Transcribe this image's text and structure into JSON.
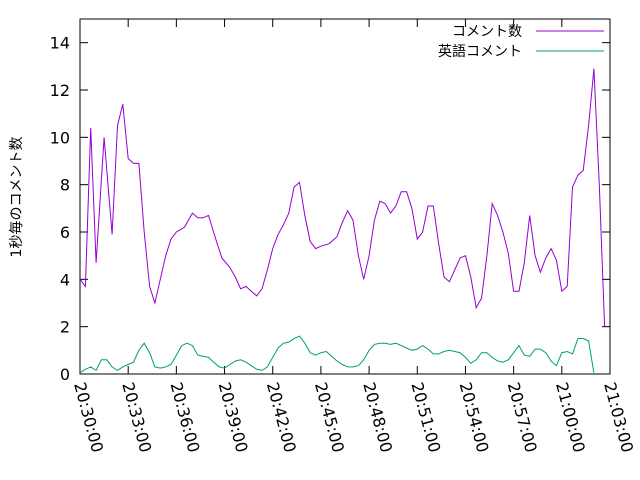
{
  "chart_data": {
    "type": "line",
    "title": "",
    "xlabel": "",
    "ylabel": "1秒毎のコメント数",
    "ylim": [
      0,
      15
    ],
    "xlim": [
      "20:30:00",
      "21:03:00"
    ],
    "yticks": [
      "0",
      "2",
      "4",
      "6",
      "8",
      "10",
      "12",
      "14"
    ],
    "xticks": [
      "20:30:00",
      "20:33:00",
      "20:36:00",
      "20:39:00",
      "20:42:00",
      "20:45:00",
      "20:48:00",
      "20:51:00",
      "20:54:00",
      "20:57:00",
      "21:00:00",
      "21:03:00"
    ],
    "grid": false,
    "legend": "top-right",
    "series": [
      {
        "name": "コメント数",
        "color": "#9400d3",
        "points": [
          [
            "20:30:00",
            4.0
          ],
          [
            "20:30:20",
            3.7
          ],
          [
            "20:30:40",
            10.4
          ],
          [
            "20:31:00",
            4.7
          ],
          [
            "20:31:30",
            10.0
          ],
          [
            "20:32:00",
            5.9
          ],
          [
            "20:32:20",
            10.5
          ],
          [
            "20:32:40",
            11.4
          ],
          [
            "20:33:00",
            9.1
          ],
          [
            "20:33:20",
            8.9
          ],
          [
            "20:33:40",
            8.9
          ],
          [
            "20:34:00",
            6.0
          ],
          [
            "20:34:20",
            3.7
          ],
          [
            "20:34:40",
            3.0
          ],
          [
            "20:35:00",
            4.0
          ],
          [
            "20:35:20",
            5.0
          ],
          [
            "20:35:40",
            5.7
          ],
          [
            "20:36:00",
            6.0
          ],
          [
            "20:36:30",
            6.2
          ],
          [
            "20:37:00",
            6.8
          ],
          [
            "20:37:20",
            6.6
          ],
          [
            "20:37:40",
            6.6
          ],
          [
            "20:38:00",
            6.7
          ],
          [
            "20:38:30",
            5.6
          ],
          [
            "20:38:50",
            4.9
          ],
          [
            "20:39:20",
            4.5
          ],
          [
            "20:39:40",
            4.1
          ],
          [
            "20:40:00",
            3.6
          ],
          [
            "20:40:20",
            3.7
          ],
          [
            "20:40:40",
            3.5
          ],
          [
            "20:41:00",
            3.3
          ],
          [
            "20:41:20",
            3.6
          ],
          [
            "20:41:40",
            4.4
          ],
          [
            "20:42:00",
            5.3
          ],
          [
            "20:42:20",
            5.9
          ],
          [
            "20:42:40",
            6.3
          ],
          [
            "20:43:00",
            6.8
          ],
          [
            "20:43:20",
            7.9
          ],
          [
            "20:43:40",
            8.1
          ],
          [
            "20:44:00",
            6.7
          ],
          [
            "20:44:20",
            5.6
          ],
          [
            "20:44:40",
            5.3
          ],
          [
            "20:45:00",
            5.4
          ],
          [
            "20:45:30",
            5.5
          ],
          [
            "20:46:00",
            5.8
          ],
          [
            "20:46:20",
            6.4
          ],
          [
            "20:46:40",
            6.9
          ],
          [
            "20:47:00",
            6.5
          ],
          [
            "20:47:20",
            5.0
          ],
          [
            "20:47:40",
            4.0
          ],
          [
            "20:48:00",
            5.0
          ],
          [
            "20:48:20",
            6.5
          ],
          [
            "20:48:40",
            7.3
          ],
          [
            "20:49:00",
            7.2
          ],
          [
            "20:49:20",
            6.8
          ],
          [
            "20:49:40",
            7.1
          ],
          [
            "20:50:00",
            7.7
          ],
          [
            "20:50:20",
            7.7
          ],
          [
            "20:50:40",
            7.0
          ],
          [
            "20:51:00",
            5.7
          ],
          [
            "20:51:20",
            6.0
          ],
          [
            "20:51:40",
            7.1
          ],
          [
            "20:52:00",
            7.1
          ],
          [
            "20:52:20",
            5.5
          ],
          [
            "20:52:40",
            4.1
          ],
          [
            "20:53:00",
            3.9
          ],
          [
            "20:53:20",
            4.4
          ],
          [
            "20:53:40",
            4.9
          ],
          [
            "20:54:00",
            5.0
          ],
          [
            "20:54:20",
            4.1
          ],
          [
            "20:54:40",
            2.8
          ],
          [
            "20:55:00",
            3.2
          ],
          [
            "20:55:20",
            5.0
          ],
          [
            "20:55:40",
            7.2
          ],
          [
            "20:56:00",
            6.7
          ],
          [
            "20:56:20",
            6.0
          ],
          [
            "20:56:40",
            5.1
          ],
          [
            "20:57:00",
            3.5
          ],
          [
            "20:57:20",
            3.5
          ],
          [
            "20:57:40",
            4.7
          ],
          [
            "20:58:00",
            6.7
          ],
          [
            "20:58:20",
            5.0
          ],
          [
            "20:58:40",
            4.3
          ],
          [
            "20:59:00",
            4.9
          ],
          [
            "20:59:20",
            5.3
          ],
          [
            "20:59:40",
            4.8
          ],
          [
            "21:00:00",
            3.5
          ],
          [
            "21:00:20",
            3.7
          ],
          [
            "21:00:40",
            7.9
          ],
          [
            "21:01:00",
            8.4
          ],
          [
            "21:01:20",
            8.6
          ],
          [
            "21:01:40",
            10.5
          ],
          [
            "21:02:00",
            12.9
          ],
          [
            "21:02:20",
            8.0
          ],
          [
            "21:02:40",
            2.0
          ]
        ]
      },
      {
        "name": "英語コメント",
        "color": "#009e73",
        "points": [
          [
            "20:30:00",
            0.05
          ],
          [
            "20:30:20",
            0.2
          ],
          [
            "20:30:40",
            0.3
          ],
          [
            "20:31:00",
            0.15
          ],
          [
            "20:31:20",
            0.6
          ],
          [
            "20:31:40",
            0.6
          ],
          [
            "20:32:00",
            0.3
          ],
          [
            "20:32:20",
            0.15
          ],
          [
            "20:32:40",
            0.3
          ],
          [
            "20:33:00",
            0.4
          ],
          [
            "20:33:20",
            0.5
          ],
          [
            "20:33:40",
            1.0
          ],
          [
            "20:34:00",
            1.3
          ],
          [
            "20:34:20",
            0.9
          ],
          [
            "20:34:40",
            0.3
          ],
          [
            "20:35:00",
            0.25
          ],
          [
            "20:35:20",
            0.3
          ],
          [
            "20:35:40",
            0.4
          ],
          [
            "20:36:00",
            0.8
          ],
          [
            "20:36:20",
            1.2
          ],
          [
            "20:36:40",
            1.3
          ],
          [
            "20:37:00",
            1.2
          ],
          [
            "20:37:20",
            0.8
          ],
          [
            "20:37:40",
            0.75
          ],
          [
            "20:38:00",
            0.7
          ],
          [
            "20:38:20",
            0.5
          ],
          [
            "20:38:40",
            0.3
          ],
          [
            "20:39:00",
            0.25
          ],
          [
            "20:39:20",
            0.4
          ],
          [
            "20:39:40",
            0.55
          ],
          [
            "20:40:00",
            0.6
          ],
          [
            "20:40:20",
            0.5
          ],
          [
            "20:40:40",
            0.35
          ],
          [
            "20:41:00",
            0.2
          ],
          [
            "20:41:20",
            0.15
          ],
          [
            "20:41:40",
            0.3
          ],
          [
            "20:42:00",
            0.7
          ],
          [
            "20:42:20",
            1.1
          ],
          [
            "20:42:40",
            1.3
          ],
          [
            "20:43:00",
            1.35
          ],
          [
            "20:43:20",
            1.5
          ],
          [
            "20:43:40",
            1.6
          ],
          [
            "20:44:00",
            1.3
          ],
          [
            "20:44:20",
            0.9
          ],
          [
            "20:44:40",
            0.8
          ],
          [
            "20:45:00",
            0.9
          ],
          [
            "20:45:20",
            0.95
          ],
          [
            "20:45:40",
            0.75
          ],
          [
            "20:46:00",
            0.55
          ],
          [
            "20:46:20",
            0.4
          ],
          [
            "20:46:40",
            0.3
          ],
          [
            "20:47:00",
            0.3
          ],
          [
            "20:47:20",
            0.35
          ],
          [
            "20:47:40",
            0.6
          ],
          [
            "20:48:00",
            1.0
          ],
          [
            "20:48:20",
            1.25
          ],
          [
            "20:48:40",
            1.3
          ],
          [
            "20:49:00",
            1.3
          ],
          [
            "20:49:20",
            1.25
          ],
          [
            "20:49:40",
            1.3
          ],
          [
            "20:50:00",
            1.2
          ],
          [
            "20:50:20",
            1.1
          ],
          [
            "20:50:40",
            1.0
          ],
          [
            "20:51:00",
            1.05
          ],
          [
            "20:51:20",
            1.2
          ],
          [
            "20:51:40",
            1.05
          ],
          [
            "20:52:00",
            0.85
          ],
          [
            "20:52:20",
            0.85
          ],
          [
            "20:52:40",
            0.95
          ],
          [
            "20:53:00",
            1.0
          ],
          [
            "20:53:20",
            0.95
          ],
          [
            "20:53:40",
            0.9
          ],
          [
            "20:54:00",
            0.7
          ],
          [
            "20:54:20",
            0.45
          ],
          [
            "20:54:40",
            0.6
          ],
          [
            "20:55:00",
            0.9
          ],
          [
            "20:55:20",
            0.9
          ],
          [
            "20:55:40",
            0.7
          ],
          [
            "20:56:00",
            0.55
          ],
          [
            "20:56:20",
            0.5
          ],
          [
            "20:56:40",
            0.6
          ],
          [
            "20:57:00",
            0.9
          ],
          [
            "20:57:20",
            1.2
          ],
          [
            "20:57:40",
            0.8
          ],
          [
            "20:58:00",
            0.75
          ],
          [
            "20:58:20",
            1.05
          ],
          [
            "20:58:40",
            1.05
          ],
          [
            "20:59:00",
            0.9
          ],
          [
            "20:59:20",
            0.55
          ],
          [
            "20:59:40",
            0.35
          ],
          [
            "21:00:00",
            0.9
          ],
          [
            "21:00:20",
            0.95
          ],
          [
            "21:00:40",
            0.85
          ],
          [
            "21:01:00",
            1.5
          ],
          [
            "21:01:20",
            1.5
          ],
          [
            "21:01:40",
            1.4
          ],
          [
            "21:02:00",
            0.05
          ]
        ]
      }
    ]
  }
}
